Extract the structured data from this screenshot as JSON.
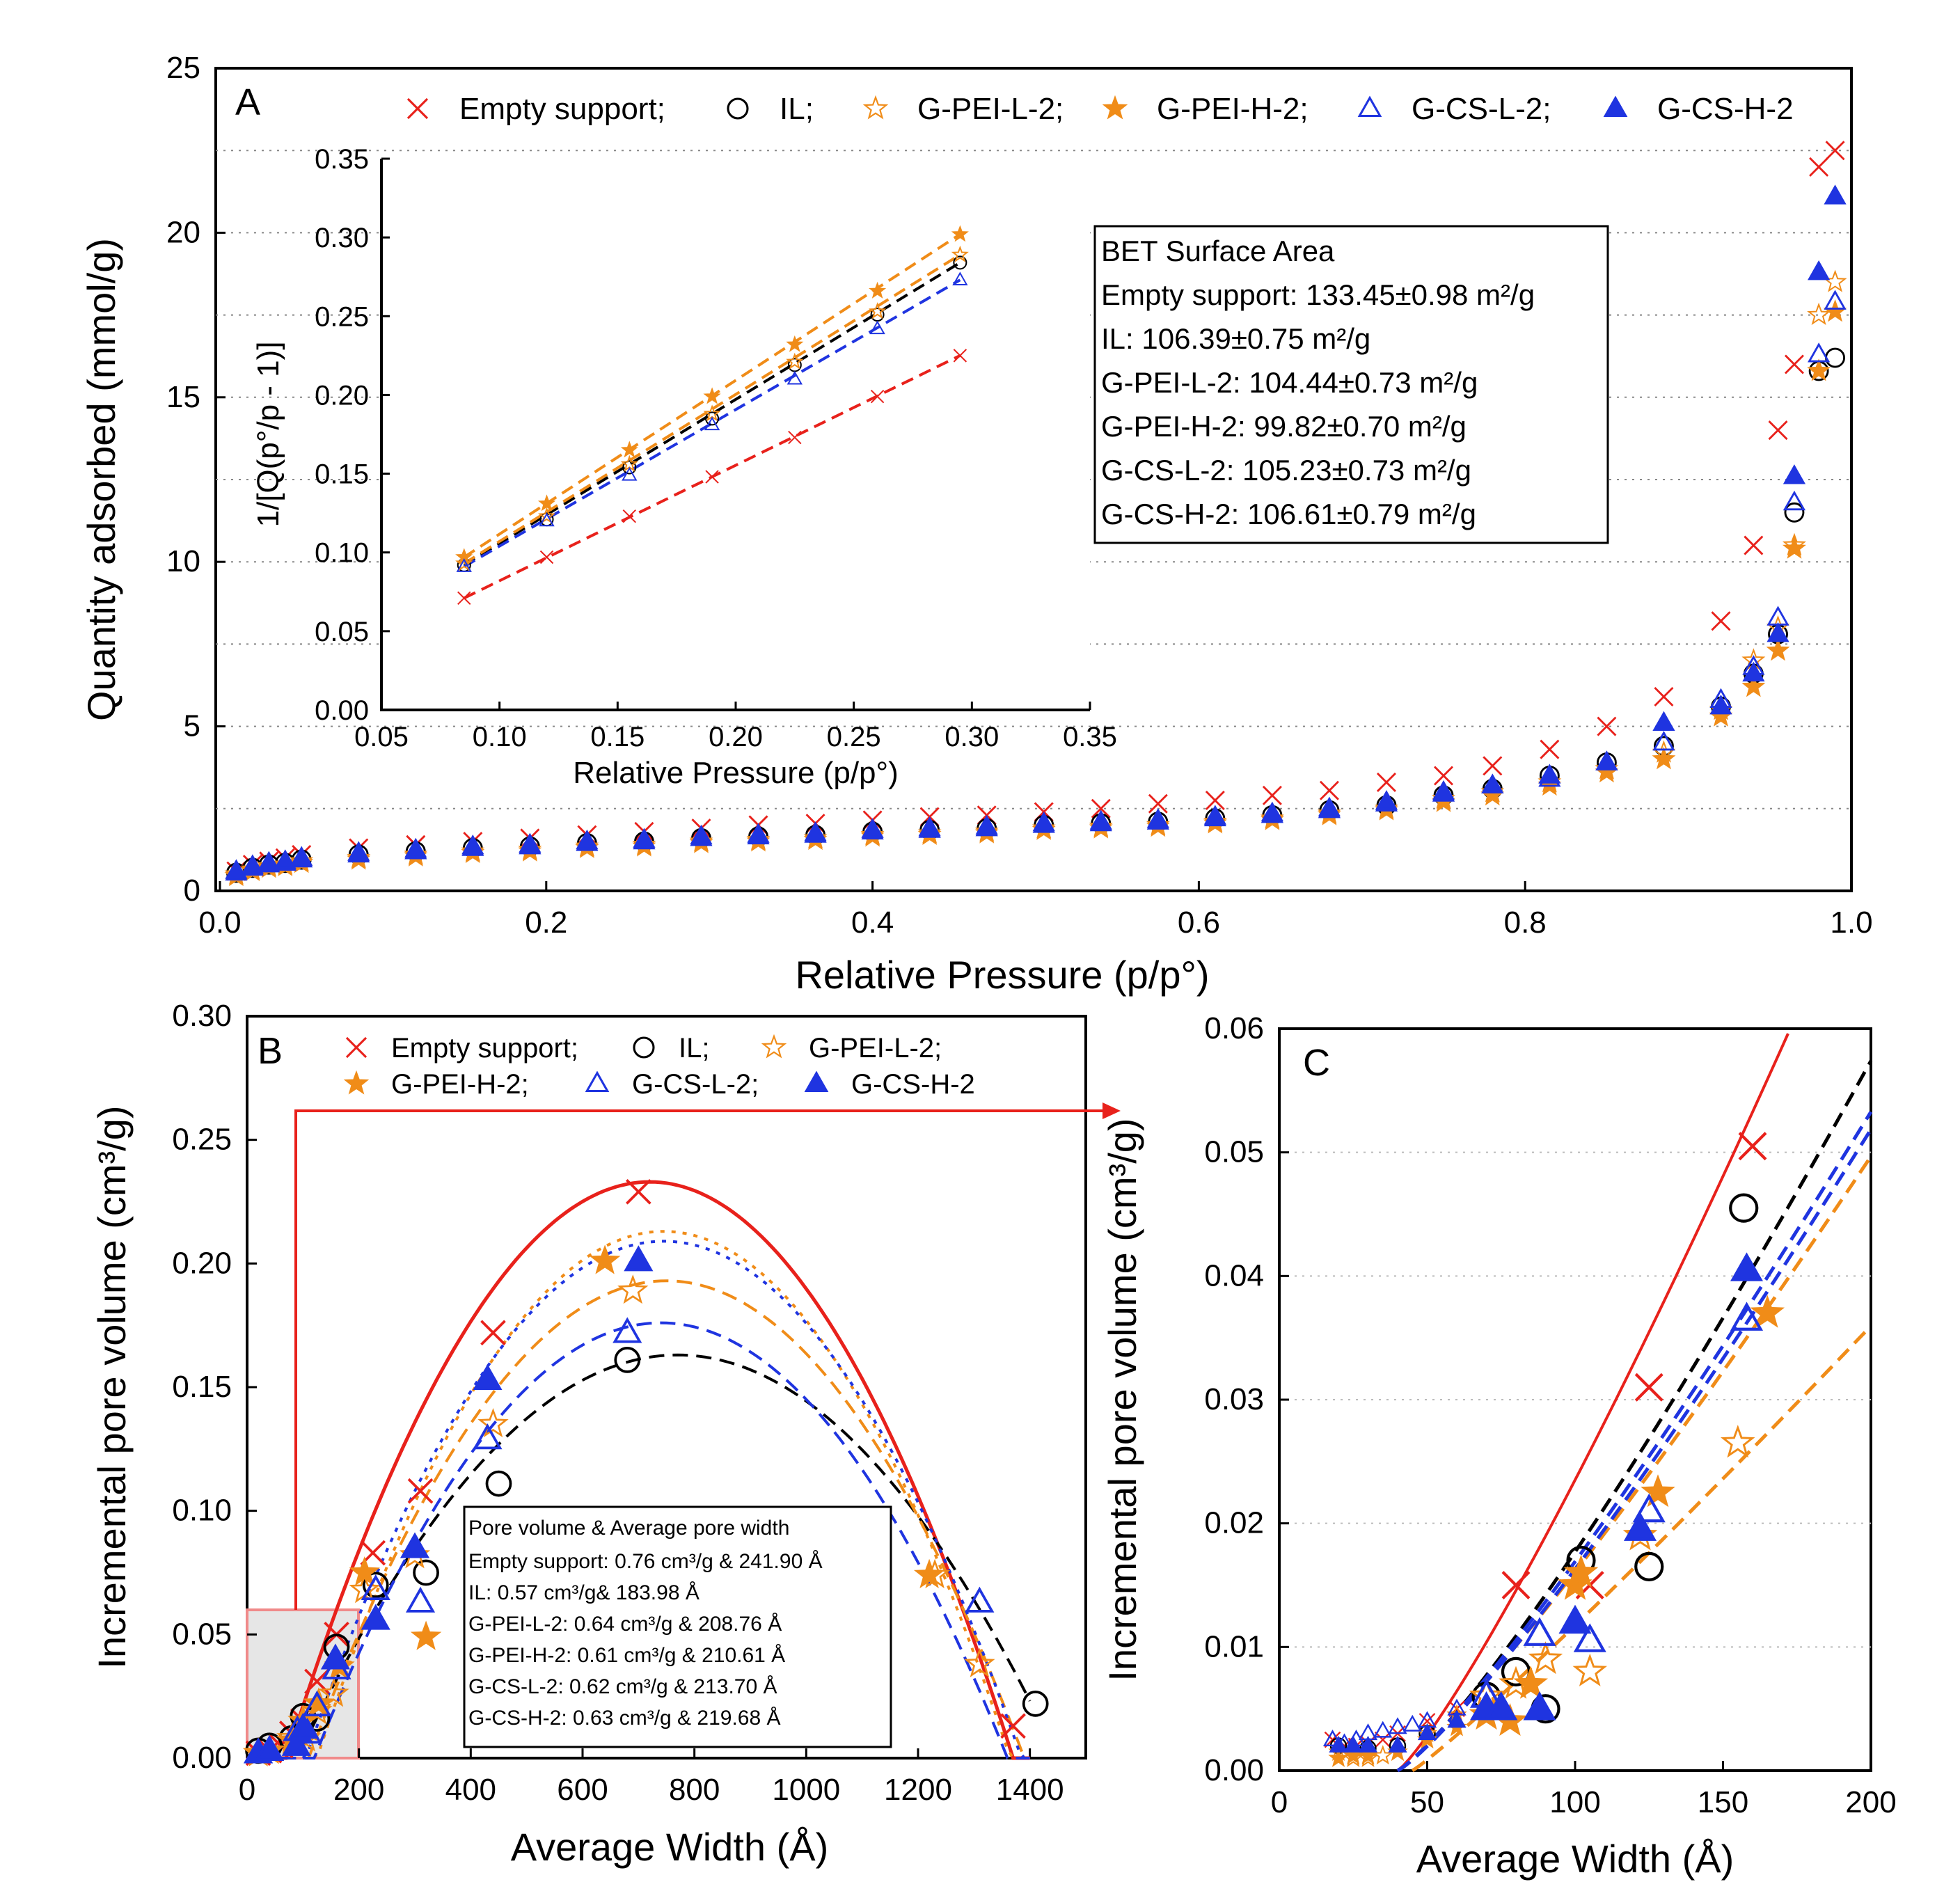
{
  "colors": {
    "empty": "#e8211b",
    "il": "#000000",
    "peiL": "#f08c18",
    "peiH": "#f08c18",
    "csL": "#1f34e0",
    "csH": "#1f34e0",
    "grid": "#888888",
    "zoom_fill": "#e6e6e6",
    "zoom_edge": "#f08a8a"
  },
  "icons": {
    "empty": "cross-marker",
    "il": "open-circle-marker",
    "peiL": "open-star-marker",
    "peiH": "filled-star-marker",
    "csL": "open-triangle-marker",
    "csH": "filled-triangle-marker"
  },
  "chart_data": [
    {
      "id": "A",
      "type": "scatter",
      "panel_label": "A",
      "xlabel": "Relative Pressure (p/p°)",
      "ylabel": "Quantity adsorbed (mmol/g)",
      "xlim": [
        0,
        1.0
      ],
      "ylim": [
        0,
        25
      ],
      "xticks": [
        "0.0",
        "0.2",
        "0.4",
        "0.6",
        "0.8",
        "1.0"
      ],
      "yticks": [
        "0",
        "5",
        "10",
        "15",
        "20",
        "25"
      ],
      "grid": "dotted horizontal",
      "legend": [
        {
          "key": "empty",
          "label": "Empty support;"
        },
        {
          "key": "il",
          "label": "IL;"
        },
        {
          "key": "peiL",
          "label": "G-PEI-L-2;"
        },
        {
          "key": "peiH",
          "label": "G-PEI-H-2;"
        },
        {
          "key": "csL",
          "label": "G-CS-L-2;"
        },
        {
          "key": "csH",
          "label": "G-CS-H-2"
        }
      ],
      "x": [
        0.01,
        0.02,
        0.03,
        0.04,
        0.05,
        0.085,
        0.12,
        0.155,
        0.19,
        0.225,
        0.26,
        0.295,
        0.33,
        0.365,
        0.4,
        0.435,
        0.47,
        0.505,
        0.54,
        0.575,
        0.61,
        0.645,
        0.68,
        0.715,
        0.75,
        0.78,
        0.815,
        0.85,
        0.885,
        0.92,
        0.94,
        0.955,
        0.965,
        0.98,
        0.99
      ],
      "series": [
        {
          "key": "empty",
          "values": [
            0.6,
            0.8,
            0.9,
            1.0,
            1.1,
            1.3,
            1.4,
            1.5,
            1.6,
            1.7,
            1.8,
            1.9,
            2.0,
            2.05,
            2.15,
            2.25,
            2.3,
            2.4,
            2.5,
            2.65,
            2.75,
            2.9,
            3.05,
            3.3,
            3.5,
            3.8,
            4.3,
            5.0,
            5.9,
            8.2,
            10.5,
            14.0,
            16.0,
            22.0,
            22.5
          ]
        },
        {
          "key": "il",
          "values": [
            0.55,
            0.7,
            0.8,
            0.85,
            0.95,
            1.1,
            1.2,
            1.3,
            1.35,
            1.45,
            1.5,
            1.6,
            1.65,
            1.7,
            1.8,
            1.85,
            1.9,
            2.0,
            2.05,
            2.1,
            2.2,
            2.3,
            2.45,
            2.6,
            2.9,
            3.1,
            3.5,
            3.9,
            4.4,
            5.6,
            6.6,
            7.8,
            11.5,
            15.8,
            16.2
          ]
        },
        {
          "key": "peiL",
          "values": [
            0.5,
            0.65,
            0.75,
            0.8,
            0.9,
            1.0,
            1.1,
            1.2,
            1.25,
            1.35,
            1.4,
            1.5,
            1.55,
            1.6,
            1.7,
            1.75,
            1.8,
            1.9,
            1.95,
            2.0,
            2.1,
            2.2,
            2.35,
            2.5,
            2.8,
            3.0,
            3.3,
            3.7,
            4.2,
            5.5,
            7.0,
            8.0,
            10.5,
            17.5,
            18.5
          ]
        },
        {
          "key": "peiH",
          "values": [
            0.45,
            0.6,
            0.7,
            0.75,
            0.85,
            0.95,
            1.05,
            1.15,
            1.2,
            1.3,
            1.35,
            1.45,
            1.5,
            1.55,
            1.65,
            1.7,
            1.75,
            1.85,
            1.9,
            1.95,
            2.05,
            2.15,
            2.3,
            2.45,
            2.7,
            2.9,
            3.2,
            3.6,
            4.0,
            5.3,
            6.2,
            7.3,
            10.4,
            15.8,
            17.6
          ]
        },
        {
          "key": "csL",
          "values": [
            0.55,
            0.7,
            0.8,
            0.85,
            0.95,
            1.1,
            1.2,
            1.3,
            1.35,
            1.45,
            1.5,
            1.6,
            1.65,
            1.7,
            1.8,
            1.85,
            1.9,
            2.0,
            2.05,
            2.1,
            2.2,
            2.3,
            2.45,
            2.65,
            2.95,
            3.2,
            3.4,
            3.9,
            4.5,
            5.8,
            6.8,
            8.3,
            11.8,
            16.3,
            17.9
          ]
        },
        {
          "key": "csH",
          "values": [
            0.6,
            0.75,
            0.85,
            0.9,
            1.0,
            1.15,
            1.25,
            1.35,
            1.4,
            1.5,
            1.55,
            1.65,
            1.7,
            1.75,
            1.85,
            1.9,
            1.95,
            2.05,
            2.1,
            2.15,
            2.25,
            2.35,
            2.5,
            2.7,
            3.0,
            3.2,
            3.5,
            3.9,
            5.1,
            5.6,
            6.6,
            7.8,
            12.6,
            18.8,
            21.1
          ]
        }
      ]
    },
    {
      "id": "A-inset",
      "type": "scatter",
      "xlabel": "Relative Pressure (p/p°)",
      "ylabel": "1/[Q(p°/p - 1)]",
      "xlim": [
        0.05,
        0.35
      ],
      "ylim": [
        0,
        0.35
      ],
      "xticks": [
        "0.05",
        "0.10",
        "0.15",
        "0.20",
        "0.25",
        "0.30",
        "0.35"
      ],
      "yticks": [
        "0.00",
        "0.05",
        "0.10",
        "0.15",
        "0.20",
        "0.25",
        "0.30",
        "0.35"
      ],
      "x": [
        0.085,
        0.12,
        0.155,
        0.19,
        0.225,
        0.26,
        0.295
      ],
      "series": [
        {
          "key": "empty",
          "values": [
            0.071,
            0.097,
            0.123,
            0.148,
            0.173,
            0.199,
            0.225
          ],
          "fit": "dashed"
        },
        {
          "key": "il",
          "values": [
            0.092,
            0.121,
            0.154,
            0.185,
            0.219,
            0.251,
            0.284
          ],
          "fit": "dashed"
        },
        {
          "key": "peiL",
          "values": [
            0.093,
            0.123,
            0.156,
            0.188,
            0.221,
            0.253,
            0.289
          ],
          "fit": "dashed"
        },
        {
          "key": "peiH",
          "values": [
            0.097,
            0.131,
            0.165,
            0.199,
            0.232,
            0.266,
            0.302
          ],
          "fit": "dashed"
        },
        {
          "key": "csL",
          "values": [
            0.091,
            0.12,
            0.149,
            0.181,
            0.21,
            0.242,
            0.273
          ],
          "fit": "dashed"
        }
      ],
      "box_title": "BET Surface Area",
      "box_lines": [
        "Empty support: 133.45±0.98 m²/g",
        "IL: 106.39±0.75 m²/g",
        "G-PEI-L-2: 104.44±0.73 m²/g",
        "G-PEI-H-2: 99.82±0.70 m²/g",
        "G-CS-L-2: 105.23±0.73 m²/g",
        "G-CS-H-2: 106.61±0.79 m²/g"
      ]
    },
    {
      "id": "B",
      "type": "scatter",
      "panel_label": "B",
      "xlabel": "Average Width (Å)",
      "ylabel": "Incremental pore volume (cm³/g)",
      "xlim": [
        0,
        1500
      ],
      "ylim": [
        0,
        0.3
      ],
      "xticks": [
        "0",
        "200",
        "400",
        "600",
        "800",
        "1000",
        "1200",
        "1400"
      ],
      "yticks": [
        "0.00",
        "0.05",
        "0.10",
        "0.15",
        "0.20",
        "0.25",
        "0.30"
      ],
      "zoom_region": {
        "x": [
          0,
          200
        ],
        "y": [
          0,
          0.06
        ]
      },
      "legend": [
        {
          "key": "empty",
          "label": "Empty support;"
        },
        {
          "key": "il",
          "label": "IL;"
        },
        {
          "key": "peiL",
          "label": "G-PEI-L-2;"
        },
        {
          "key": "peiH",
          "label": "G-PEI-H-2;"
        },
        {
          "key": "csL",
          "label": "G-CS-L-2;"
        },
        {
          "key": "csH",
          "label": "G-CS-H-2"
        }
      ],
      "series": [
        {
          "key": "empty",
          "x": [
            20,
            40,
            60,
            80,
            100,
            125,
            160,
            225,
            310,
            440,
            700,
            1370
          ],
          "values": [
            0.002,
            0.003,
            0.005,
            0.01,
            0.015,
            0.031,
            0.05,
            0.083,
            0.108,
            0.172,
            0.229,
            0.013
          ],
          "fit": {
            "style": "solid",
            "peak_x": 720,
            "peak_y": 0.233,
            "halfwidth": 650
          }
        },
        {
          "key": "il",
          "x": [
            20,
            40,
            80,
            100,
            125,
            160,
            230,
            320,
            450,
            680,
            1410
          ],
          "values": [
            0.003,
            0.005,
            0.008,
            0.017,
            0.016,
            0.045,
            0.07,
            0.075,
            0.111,
            0.161,
            0.022
          ],
          "fit": {
            "style": "dashed",
            "peak_x": 770,
            "peak_y": 0.163,
            "halfwidth": 680
          }
        },
        {
          "key": "peiL",
          "x": [
            20,
            40,
            80,
            105,
            125,
            155,
            210,
            300,
            440,
            690,
            1230,
            1310
          ],
          "values": [
            0.002,
            0.003,
            0.008,
            0.008,
            0.019,
            0.026,
            0.068,
            0.082,
            0.135,
            0.189,
            0.074,
            0.038
          ],
          "fit": {
            "style": "dashed",
            "peak_x": 750,
            "peak_y": 0.193,
            "halfwidth": 640
          }
        },
        {
          "key": "peiH",
          "x": [
            20,
            40,
            80,
            100,
            128,
            165,
            210,
            320,
            640,
            1220
          ],
          "values": [
            0.002,
            0.003,
            0.007,
            0.015,
            0.022,
            0.037,
            0.075,
            0.049,
            0.201,
            0.074
          ],
          "fit": {
            "style": "dotted",
            "peak_x": 745,
            "peak_y": 0.213,
            "halfwidth": 620
          }
        },
        {
          "key": "csL",
          "x": [
            20,
            40,
            90,
            108,
            125,
            160,
            230,
            310,
            430,
            680,
            1310
          ],
          "values": [
            0.002,
            0.003,
            0.011,
            0.01,
            0.021,
            0.036,
            0.068,
            0.063,
            0.129,
            0.172,
            0.063
          ],
          "fit": {
            "style": "dashed",
            "peak_x": 740,
            "peak_y": 0.176,
            "halfwidth": 620
          }
        },
        {
          "key": "csH",
          "x": [
            20,
            40,
            88,
            100,
            158,
            230,
            300,
            430,
            700
          ],
          "values": [
            0.002,
            0.003,
            0.005,
            0.012,
            0.04,
            0.056,
            0.085,
            0.153,
            0.201
          ],
          "fit": {
            "style": "dotted",
            "peak_x": 745,
            "peak_y": 0.209,
            "halfwidth": 640
          }
        }
      ],
      "box_title": "Pore volume & Average pore width",
      "box_lines": [
        "Empty support: 0.76 cm³/g & 241.90 Å",
        "IL: 0.57 cm³/g& 183.98 Å",
        "G-PEI-L-2: 0.64 cm³/g & 208.76 Å",
        "G-PEI-H-2: 0.61 cm³/g & 210.61 Å",
        "G-CS-L-2: 0.62 cm³/g & 213.70 Å",
        "G-CS-H-2: 0.63 cm³/g & 219.68 Å"
      ]
    },
    {
      "id": "C",
      "type": "scatter",
      "panel_label": "C",
      "xlabel": "Average Width (Å)",
      "ylabel": "Incremental pore volume (cm³/g)",
      "xlim": [
        0,
        200
      ],
      "ylim": [
        0,
        0.06
      ],
      "xticks": [
        "0",
        "50",
        "100",
        "150",
        "200"
      ],
      "yticks": [
        "0.00",
        "0.01",
        "0.02",
        "0.03",
        "0.04",
        "0.05",
        "0.06"
      ],
      "series": [
        {
          "key": "empty",
          "x": [
            18,
            22,
            26,
            30,
            35,
            40,
            50,
            60,
            80,
            105,
            125,
            160
          ],
          "values": [
            0.0025,
            0.002,
            0.002,
            0.0022,
            0.0025,
            0.003,
            0.004,
            0.005,
            0.015,
            0.015,
            0.031,
            0.0505
          ],
          "fit": {
            "style": "solid",
            "x0": 40,
            "k": 0.0001875,
            "p": 1.18
          }
        },
        {
          "key": "il",
          "x": [
            20,
            30,
            40,
            50,
            70,
            80,
            90,
            102,
            125,
            157
          ],
          "values": [
            0.002,
            0.0018,
            0.002,
            0.003,
            0.006,
            0.008,
            0.005,
            0.017,
            0.0165,
            0.0455
          ],
          "fit": {
            "style": "dashed",
            "x0": 40,
            "k": 0.00013,
            "p": 1.2
          }
        },
        {
          "key": "peiL",
          "x": [
            20,
            25,
            30,
            35,
            40,
            50,
            60,
            70,
            80,
            90,
            105,
            122,
            155
          ],
          "values": [
            0.0015,
            0.001,
            0.001,
            0.0012,
            0.0015,
            0.003,
            0.0045,
            0.006,
            0.007,
            0.009,
            0.008,
            0.019,
            0.0265
          ],
          "fit": {
            "style": "dashed",
            "x0": 45,
            "k": 0.000155,
            "p": 1.08
          }
        },
        {
          "key": "peiH",
          "x": [
            20,
            25,
            30,
            40,
            50,
            60,
            70,
            78,
            85,
            100,
            102,
            128,
            165
          ],
          "values": [
            0.001,
            0.0012,
            0.0012,
            0.0015,
            0.0025,
            0.0035,
            0.0045,
            0.004,
            0.007,
            0.015,
            0.016,
            0.0225,
            0.037
          ],
          "fit": {
            "style": "dashed",
            "x0": 40,
            "k": 0.000145,
            "p": 1.15
          }
        },
        {
          "key": "csL",
          "x": [
            18,
            22,
            26,
            30,
            35,
            40,
            45,
            50,
            60,
            70,
            88,
            105,
            125,
            158
          ],
          "values": [
            0.0025,
            0.0022,
            0.0025,
            0.003,
            0.0032,
            0.0035,
            0.0037,
            0.004,
            0.005,
            0.006,
            0.011,
            0.0105,
            0.021,
            0.0365
          ],
          "fit": {
            "style": "dashed",
            "x0": 40,
            "k": 0.0001405,
            "p": 1.17
          }
        },
        {
          "key": "csH",
          "x": [
            20,
            25,
            30,
            40,
            50,
            60,
            70,
            75,
            88,
            100,
            122,
            158
          ],
          "values": [
            0.002,
            0.002,
            0.002,
            0.002,
            0.003,
            0.004,
            0.005,
            0.005,
            0.005,
            0.012,
            0.0195,
            0.0405
          ],
          "fit": {
            "style": "dashed",
            "x0": 40,
            "k": 0.00013,
            "p": 1.18
          }
        }
      ]
    }
  ]
}
